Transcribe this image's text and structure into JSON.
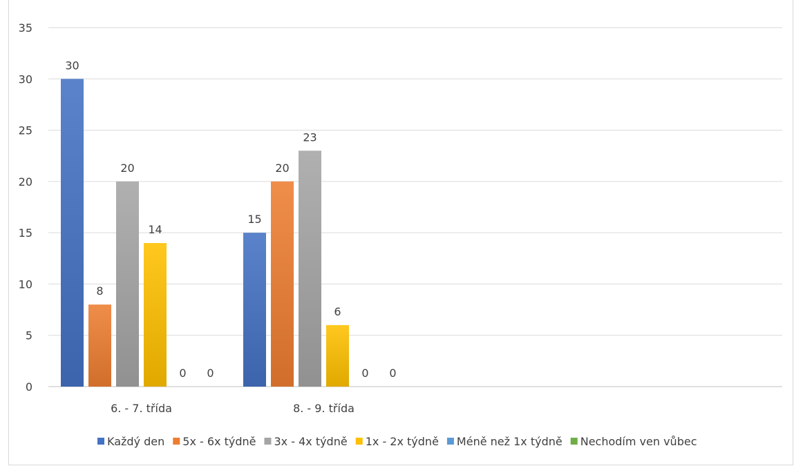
{
  "chart_data": {
    "type": "bar",
    "categories": [
      "6. - 7. třída",
      "8. - 9. třída"
    ],
    "series": [
      {
        "name": "Každý den",
        "values": [
          30,
          15
        ],
        "color": "#4472c4"
      },
      {
        "name": "5x - 6x týdně",
        "values": [
          8,
          20
        ],
        "color": "#ed7d31"
      },
      {
        "name": "3x - 4x týdně",
        "values": [
          20,
          23
        ],
        "color": "#a5a5a5"
      },
      {
        "name": "1x - 2x týdně",
        "values": [
          14,
          6
        ],
        "color": "#ffc000"
      },
      {
        "name": "Méně než 1x týdně",
        "values": [
          0,
          0
        ],
        "color": "#5b9bd5"
      },
      {
        "name": "Nechodím ven vůbec",
        "values": [
          0,
          0
        ],
        "color": "#70ad47"
      }
    ],
    "ylim": [
      0,
      35
    ],
    "yticks": [
      0,
      5,
      10,
      15,
      20,
      25,
      30,
      35
    ],
    "grid": true,
    "legend_position": "bottom",
    "data_labels": true
  }
}
